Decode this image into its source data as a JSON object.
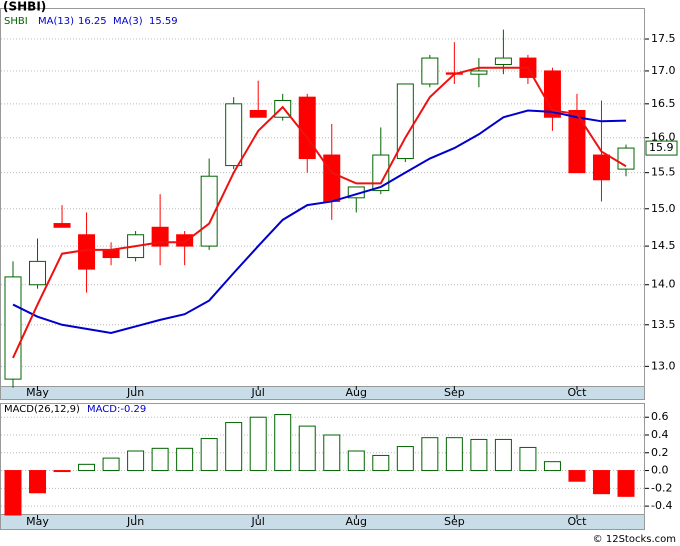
{
  "chart_data": [
    {
      "type": "candlestick",
      "title": "(SHBI)",
      "ticker": "SHBI",
      "log_scale": true,
      "categories": [
        null,
        "May",
        null,
        null,
        null,
        "Jun",
        null,
        null,
        null,
        null,
        "Jul",
        null,
        null,
        null,
        "Aug",
        null,
        null,
        null,
        "Sep",
        null,
        null,
        null,
        null,
        "Oct",
        null,
        null
      ],
      "open": [
        12.85,
        14.0,
        14.8,
        14.65,
        14.45,
        14.35,
        14.75,
        14.65,
        14.5,
        15.6,
        16.4,
        16.3,
        16.6,
        15.75,
        15.15,
        15.25,
        15.7,
        16.8,
        16.97,
        16.95,
        17.1,
        17.2,
        17.0,
        16.4,
        15.75,
        15.55
      ],
      "high": [
        14.3,
        14.6,
        15.05,
        14.95,
        14.55,
        14.7,
        15.2,
        14.7,
        15.7,
        16.6,
        16.85,
        16.65,
        16.65,
        16.2,
        15.3,
        16.15,
        16.8,
        17.25,
        17.45,
        17.2,
        17.65,
        17.25,
        17.05,
        16.65,
        16.55,
        15.9
      ],
      "low": [
        12.75,
        13.95,
        14.75,
        13.9,
        14.25,
        14.3,
        14.25,
        14.25,
        14.45,
        15.55,
        16.3,
        16.25,
        15.5,
        14.85,
        14.95,
        15.2,
        15.65,
        16.75,
        16.8,
        16.75,
        16.95,
        16.8,
        16.1,
        15.5,
        15.1,
        15.45
      ],
      "close": [
        14.1,
        14.3,
        14.75,
        14.2,
        14.35,
        14.65,
        14.5,
        14.5,
        15.45,
        16.5,
        16.3,
        16.55,
        15.7,
        15.1,
        15.3,
        15.75,
        16.8,
        17.2,
        16.95,
        17.0,
        17.2,
        16.9,
        16.3,
        15.5,
        15.4,
        15.85
      ],
      "up_color": "#006400",
      "down_color": "#ff0000",
      "series": [
        {
          "name": "MA(13)",
          "legend_value": "16.25",
          "color": "#0000cc",
          "values": [
            13.75,
            13.6,
            13.5,
            13.45,
            13.4,
            13.48,
            13.56,
            13.63,
            13.8,
            14.15,
            14.5,
            14.85,
            15.05,
            15.1,
            15.2,
            15.3,
            15.5,
            15.7,
            15.85,
            16.05,
            16.3,
            16.4,
            16.38,
            16.3,
            16.24,
            16.25
          ]
        },
        {
          "name": "MA(3)",
          "legend_value": "15.59",
          "color": "#ee1111",
          "values": [
            13.1,
            13.75,
            14.4,
            14.45,
            14.45,
            14.5,
            14.55,
            14.55,
            14.8,
            15.5,
            16.1,
            16.45,
            16.0,
            15.5,
            15.35,
            15.35,
            16.0,
            16.6,
            16.95,
            17.05,
            17.05,
            17.05,
            16.4,
            16.35,
            15.8,
            15.59
          ]
        }
      ],
      "last_label": "15.9",
      "ylim": [
        12.77,
        18.0
      ],
      "yticks": [
        {
          "value": 13,
          "label": "13.0"
        },
        13.5,
        {
          "value": 14,
          "label": "14.0"
        },
        14.5,
        {
          "value": 15,
          "label": "15.0"
        },
        15.5,
        {
          "value": 16,
          "label": "16.0"
        },
        16.5,
        {
          "value": 17,
          "label": "17.0"
        },
        17.5
      ],
      "grid": true
    },
    {
      "type": "bar",
      "title": "MACD(26,12,9)",
      "legend": "MACD:-0.29",
      "categories": [
        null,
        "May",
        null,
        null,
        null,
        "Jun",
        null,
        null,
        null,
        null,
        "Jul",
        null,
        null,
        null,
        "Aug",
        null,
        null,
        null,
        "Sep",
        null,
        null,
        null,
        null,
        "Oct",
        null,
        null
      ],
      "values": [
        -0.55,
        -0.25,
        -0.01,
        0.07,
        0.14,
        0.22,
        0.25,
        0.25,
        0.36,
        0.54,
        0.6,
        0.63,
        0.5,
        0.4,
        0.22,
        0.17,
        0.27,
        0.37,
        0.37,
        0.35,
        0.35,
        0.26,
        0.1,
        -0.12,
        -0.26,
        -0.29
      ],
      "up_color": "#006400",
      "down_color": "#ff0000",
      "ylim": [
        -0.5,
        0.76
      ],
      "yticks": [
        -0.4,
        -0.2,
        {
          "value": 0,
          "label": "0.0"
        },
        0.2,
        0.4,
        0.6
      ],
      "grid": true
    }
  ],
  "footer": "© 12Stocks.com"
}
